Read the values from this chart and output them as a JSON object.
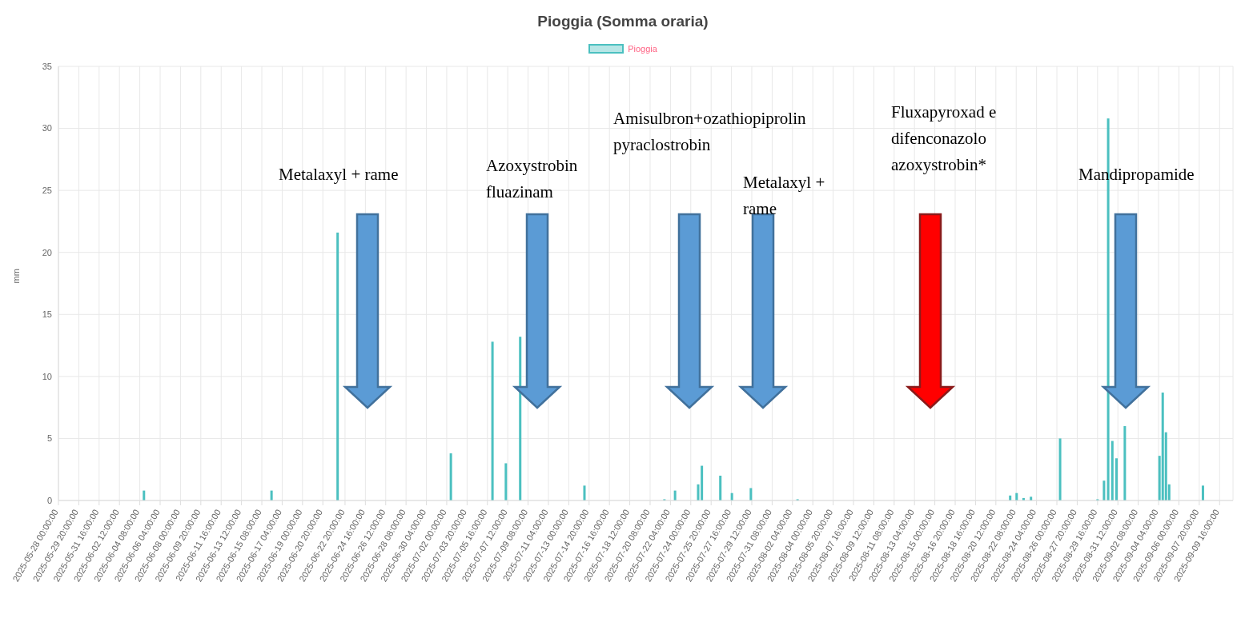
{
  "chart_data": {
    "type": "bar",
    "title": "Pioggia (Somma oraria)",
    "ylabel": "mm",
    "x": [
      "2025-06-04T17:00",
      "2025-06-16T05:00",
      "2025-06-22T04:00",
      "2025-07-02T09:00",
      "2025-07-06T03:00",
      "2025-07-07T08:00",
      "2025-07-08T15:00",
      "2025-07-14T10:00",
      "2025-07-21T15:00",
      "2025-07-22T14:00",
      "2025-07-24T16:00",
      "2025-07-25T00:00",
      "2025-07-26T16:00",
      "2025-07-27T17:00",
      "2025-07-29T10:00",
      "2025-08-02T15:00",
      "2025-08-21T19:00",
      "2025-08-22T09:00",
      "2025-08-23T00:00",
      "2025-08-23T16:00",
      "2025-08-26T07:00",
      "2025-08-29T16:00",
      "2025-08-30T06:00",
      "2025-08-30T15:00",
      "2025-08-31T00:00",
      "2025-08-31T09:00",
      "2025-09-01T03:00",
      "2025-09-04T06:00",
      "2025-09-04T13:00",
      "2025-09-04T20:00",
      "2025-09-05T03:00",
      "2025-09-08T04:00"
    ],
    "series": [
      {
        "name": "Pioggia",
        "color": "#4bc0c0",
        "values": [
          0.8,
          0.8,
          21.6,
          3.8,
          12.8,
          3.0,
          13.2,
          1.2,
          0.1,
          0.8,
          1.3,
          2.8,
          2.0,
          0.6,
          1.0,
          0.1,
          0.4,
          0.6,
          0.2,
          0.3,
          5.0,
          0.1,
          1.6,
          30.8,
          4.8,
          3.4,
          6.0,
          3.6,
          8.7,
          5.5,
          1.3,
          1.2
        ]
      }
    ],
    "xlim": [
      "2025-05-28T00:00",
      "2025-09-10T21:00"
    ],
    "xticks": [
      {
        "value": "2025-05-28T00:00",
        "label": "2025-05-28 00:00:00"
      },
      {
        "value": "2025-05-29T20:00",
        "label": "2025-05-29 20:00:00"
      },
      {
        "value": "2025-05-31T16:00",
        "label": "2025-05-31 16:00:00"
      },
      {
        "value": "2025-06-02T12:00",
        "label": "2025-06-02 12:00:00"
      },
      {
        "value": "2025-06-04T08:00",
        "label": "2025-06-04 08:00:00"
      },
      {
        "value": "2025-06-06T04:00",
        "label": "2025-06-06 04:00:00"
      },
      {
        "value": "2025-06-08T00:00",
        "label": "2025-06-08 00:00:00"
      },
      {
        "value": "2025-06-09T20:00",
        "label": "2025-06-09 20:00:00"
      },
      {
        "value": "2025-06-11T16:00",
        "label": "2025-06-11 16:00:00"
      },
      {
        "value": "2025-06-13T12:00",
        "label": "2025-06-13 12:00:00"
      },
      {
        "value": "2025-06-15T08:00",
        "label": "2025-06-15 08:00:00"
      },
      {
        "value": "2025-06-17T04:00",
        "label": "2025-06-17 04:00:00"
      },
      {
        "value": "2025-06-19T00:00",
        "label": "2025-06-19 00:00:00"
      },
      {
        "value": "2025-06-20T20:00",
        "label": "2025-06-20 20:00:00"
      },
      {
        "value": "2025-06-22T20:00",
        "label": "2025-06-22 20:00:00"
      },
      {
        "value": "2025-06-24T16:00",
        "label": "2025-06-24 16:00:00"
      },
      {
        "value": "2025-06-26T12:00",
        "label": "2025-06-26 12:00:00"
      },
      {
        "value": "2025-06-28T08:00",
        "label": "2025-06-28 08:00:00"
      },
      {
        "value": "2025-06-30T04:00",
        "label": "2025-06-30 04:00:00"
      },
      {
        "value": "2025-07-02T00:00",
        "label": "2025-07-02 00:00:00"
      },
      {
        "value": "2025-07-03T20:00",
        "label": "2025-07-03 20:00:00"
      },
      {
        "value": "2025-07-05T16:00",
        "label": "2025-07-05 16:00:00"
      },
      {
        "value": "2025-07-07T12:00",
        "label": "2025-07-07 12:00:00"
      },
      {
        "value": "2025-07-09T08:00",
        "label": "2025-07-09 08:00:00"
      },
      {
        "value": "2025-07-11T04:00",
        "label": "2025-07-11 04:00:00"
      },
      {
        "value": "2025-07-13T00:00",
        "label": "2025-07-13 00:00:00"
      },
      {
        "value": "2025-07-14T20:00",
        "label": "2025-07-14 20:00:00"
      },
      {
        "value": "2025-07-16T16:00",
        "label": "2025-07-16 16:00:00"
      },
      {
        "value": "2025-07-18T12:00",
        "label": "2025-07-18 12:00:00"
      },
      {
        "value": "2025-07-20T08:00",
        "label": "2025-07-20 08:00:00"
      },
      {
        "value": "2025-07-22T04:00",
        "label": "2025-07-22 04:00:00"
      },
      {
        "value": "2025-07-24T00:00",
        "label": "2025-07-24 00:00:00"
      },
      {
        "value": "2025-07-25T20:00",
        "label": "2025-07-25 20:00:00"
      },
      {
        "value": "2025-07-27T16:00",
        "label": "2025-07-27 16:00:00"
      },
      {
        "value": "2025-07-29T12:00",
        "label": "2025-07-29 12:00:00"
      },
      {
        "value": "2025-07-31T08:00",
        "label": "2025-07-31 08:00:00"
      },
      {
        "value": "2025-08-02T04:00",
        "label": "2025-08-02 04:00:00"
      },
      {
        "value": "2025-08-04T00:00",
        "label": "2025-08-04 00:00:00"
      },
      {
        "value": "2025-08-05T20:00",
        "label": "2025-08-05 20:00:00"
      },
      {
        "value": "2025-08-07T16:00",
        "label": "2025-08-07 16:00:00"
      },
      {
        "value": "2025-08-09T12:00",
        "label": "2025-08-09 12:00:00"
      },
      {
        "value": "2025-08-11T08:00",
        "label": "2025-08-11 08:00:00"
      },
      {
        "value": "2025-08-13T04:00",
        "label": "2025-08-13 04:00:00"
      },
      {
        "value": "2025-08-15T00:00",
        "label": "2025-08-15 00:00:00"
      },
      {
        "value": "2025-08-16T20:00",
        "label": "2025-08-16 20:00:00"
      },
      {
        "value": "2025-08-18T16:00",
        "label": "2025-08-18 16:00:00"
      },
      {
        "value": "2025-08-20T12:00",
        "label": "2025-08-20 12:00:00"
      },
      {
        "value": "2025-08-22T08:00",
        "label": "2025-08-22 08:00:00"
      },
      {
        "value": "2025-08-24T04:00",
        "label": "2025-08-24 04:00:00"
      },
      {
        "value": "2025-08-26T00:00",
        "label": "2025-08-26 00:00:00"
      },
      {
        "value": "2025-08-27T20:00",
        "label": "2025-08-27 20:00:00"
      },
      {
        "value": "2025-08-29T16:00",
        "label": "2025-08-29 16:00:00"
      },
      {
        "value": "2025-08-31T12:00",
        "label": "2025-08-31 12:00:00"
      },
      {
        "value": "2025-09-02T08:00",
        "label": "2025-09-02 08:00:00"
      },
      {
        "value": "2025-09-04T04:00",
        "label": "2025-09-04 04:00:00"
      },
      {
        "value": "2025-09-06T00:00",
        "label": "2025-09-06 00:00:00"
      },
      {
        "value": "2025-09-07T20:00",
        "label": "2025-09-07 20:00:00"
      },
      {
        "value": "2025-09-09T16:00",
        "label": "2025-09-09 16:00:00"
      }
    ],
    "ylim": [
      0,
      35
    ],
    "yticks": [
      0,
      5,
      10,
      15,
      20,
      25,
      30,
      35
    ],
    "grid": true,
    "legend": "top",
    "annotations": [
      "Metalaxyl + rame",
      "Azoxystrobin fluazinam",
      "Amisulbron+ozathiopiprolin pyraclostrobin",
      "Metalaxyl + rame",
      "Fluxapyroxad e difenconazolo azoxystrobin*",
      "Mandipropamide"
    ]
  }
}
